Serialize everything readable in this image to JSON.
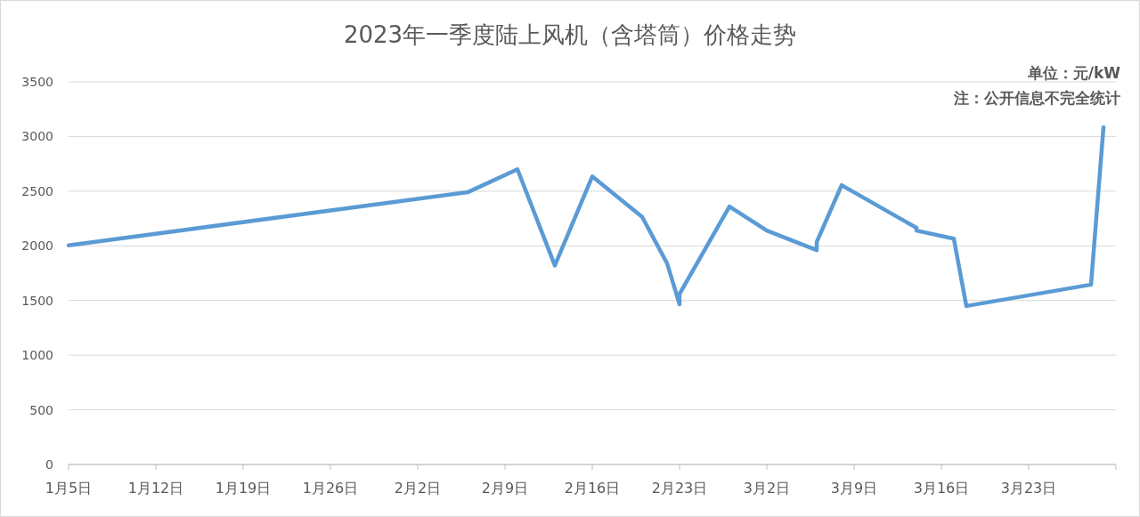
{
  "chart_data": {
    "type": "line",
    "title": "2023年一季度陆上风机（含塔筒）价格走势",
    "annotations": [
      "单位：元/kW",
      "注：公开信息不完全统计"
    ],
    "x": [
      "--01-05",
      "--02-06",
      "--02-10",
      "--02-13",
      "--02-16",
      "--02-20",
      "--02-22",
      "--02-23",
      "--02-23",
      "--02-27",
      "--03-02",
      "--03-06",
      "--03-06",
      "--03-08",
      "--03-14",
      "--03-14",
      "--03-17",
      "--03-18",
      "--03-28",
      "--03-29"
    ],
    "series": [
      {
        "color": "#5b9bd5",
        "values": [
          2005,
          2490,
          2700,
          1820,
          2635,
          2265,
          1840,
          1465,
          1560,
          2360,
          2140,
          1960,
          2035,
          2555,
          2165,
          2140,
          2065,
          1450,
          1645,
          3085
        ]
      }
    ],
    "xlim": [
      "--01-05",
      "--03-30"
    ],
    "xticks": [
      {
        "value": "--01-05",
        "label": "1月5日"
      },
      {
        "value": "--01-12",
        "label": "1月12日"
      },
      {
        "value": "--01-19",
        "label": "1月19日"
      },
      {
        "value": "--01-26",
        "label": "1月26日"
      },
      {
        "value": "--02-02",
        "label": "2月2日"
      },
      {
        "value": "--02-09",
        "label": "2月9日"
      },
      {
        "value": "--02-16",
        "label": "2月16日"
      },
      {
        "value": "--02-23",
        "label": "2月23日"
      },
      {
        "value": "--03-02",
        "label": "3月2日"
      },
      {
        "value": "--03-09",
        "label": "3月9日"
      },
      {
        "value": "--03-16",
        "label": "3月16日"
      },
      {
        "value": "--03-23",
        "label": "3月23日"
      },
      {
        "value": "--03-30",
        "label": null
      }
    ],
    "ylim": [
      0,
      3500
    ],
    "yticks": [
      0,
      500,
      1000,
      1500,
      2000,
      2500,
      3000,
      3500
    ],
    "grid": "y",
    "line_style": "solid"
  }
}
